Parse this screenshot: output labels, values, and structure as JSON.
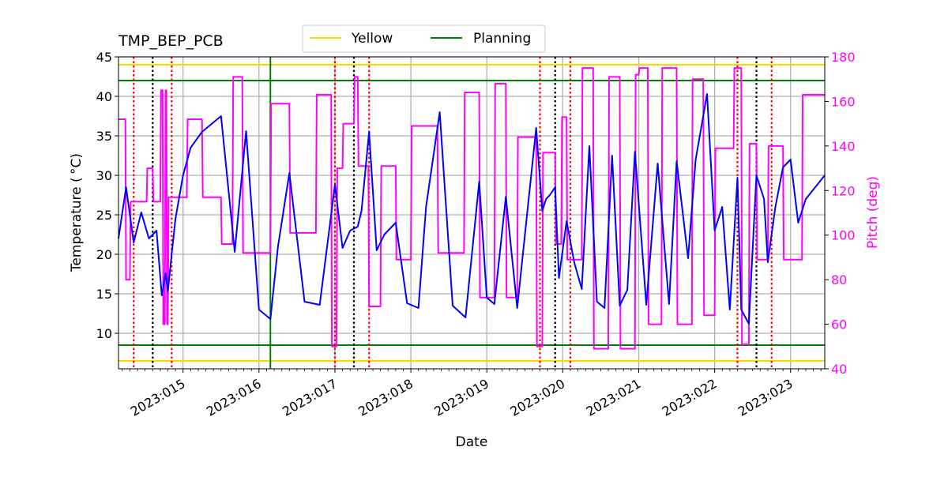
{
  "chart_data": {
    "type": "line",
    "title": "TMP_BEP_PCB",
    "xlabel": "Date",
    "ylabel": "Temperature ($^\\circ$C)",
    "ylabel_display": "Temperature ( °C)",
    "y2label": "Pitch (deg)",
    "xlim": [
      14.15,
      23.45
    ],
    "ylim": [
      5.5,
      45
    ],
    "y2lim": [
      40,
      180
    ],
    "x_ticks": [
      {
        "value": 15,
        "label": "2023:015"
      },
      {
        "value": 16,
        "label": "2023:016"
      },
      {
        "value": 17,
        "label": "2023:017"
      },
      {
        "value": 18,
        "label": "2023:018"
      },
      {
        "value": 19,
        "label": "2023:019"
      },
      {
        "value": 20,
        "label": "2023:020"
      },
      {
        "value": 21,
        "label": "2023:021"
      },
      {
        "value": 22,
        "label": "2023:022"
      },
      {
        "value": 23,
        "label": "2023:023"
      }
    ],
    "y_ticks": [
      10,
      15,
      20,
      25,
      30,
      35,
      40,
      45
    ],
    "y2_ticks": [
      40,
      60,
      80,
      100,
      120,
      140,
      160,
      180
    ],
    "grid": true,
    "legend_position": "top-center",
    "colors": {
      "temperature": "#0000ff",
      "pitch": "#ff00ff",
      "yellow": "#ffd700",
      "planning": "#008000",
      "red_marker": "#ff0000",
      "black_marker": "#000000",
      "grid": "#b0b0b0"
    },
    "legend": [
      {
        "name": "Yellow",
        "color": "#ffd700"
      },
      {
        "name": "Planning",
        "color": "#008000"
      }
    ],
    "hlines": [
      {
        "name": "Yellow",
        "values": [
          44,
          6.5
        ]
      },
      {
        "name": "Planning",
        "values": [
          42,
          8.5
        ]
      }
    ],
    "vline_planning": 16.15,
    "vlines_red": [
      14.35,
      14.85,
      17.0,
      17.45,
      19.7,
      20.1,
      22.3,
      22.75
    ],
    "vlines_black": [
      14.6,
      17.25,
      19.9,
      22.55
    ],
    "series": [
      {
        "name": "TMP_BEP_PCB",
        "axis": "left",
        "x": [
          14.15,
          14.25,
          14.35,
          14.45,
          14.55,
          14.6,
          14.65,
          14.72,
          14.77,
          14.8,
          14.85,
          14.9,
          15.0,
          15.1,
          15.25,
          15.5,
          15.68,
          15.83,
          16.0,
          16.15,
          16.25,
          16.4,
          16.6,
          16.8,
          17.0,
          17.1,
          17.2,
          17.3,
          17.35,
          17.45,
          17.55,
          17.65,
          17.8,
          17.95,
          18.1,
          18.2,
          18.38,
          18.55,
          18.72,
          18.9,
          19.0,
          19.1,
          19.25,
          19.4,
          19.65,
          19.73,
          19.78,
          19.83,
          19.9,
          19.95,
          20.05,
          20.15,
          20.25,
          20.35,
          20.45,
          20.55,
          20.65,
          20.75,
          20.85,
          20.95,
          21.1,
          21.25,
          21.4,
          21.5,
          21.65,
          21.75,
          21.9,
          22.0,
          22.1,
          22.2,
          22.3,
          22.35,
          22.45,
          22.55,
          22.65,
          22.7,
          22.8,
          22.9,
          23.0,
          23.1,
          23.2,
          23.45
        ],
        "y": [
          22,
          28.5,
          21.5,
          25.3,
          22,
          22.5,
          23,
          14.8,
          17.6,
          15.3,
          20,
          24.5,
          30,
          33.5,
          35.5,
          37.5,
          20.3,
          35.6,
          13,
          11.8,
          21,
          30.3,
          14,
          13.6,
          28.8,
          20.8,
          23,
          23.5,
          25.5,
          35.5,
          20.5,
          22.5,
          24,
          13.8,
          13.2,
          26,
          38,
          13.5,
          12,
          29.2,
          14.5,
          13.7,
          27.3,
          13.2,
          36,
          25.5,
          27,
          27.5,
          28.5,
          17,
          24.2,
          19,
          15.6,
          33.7,
          14,
          13.2,
          32.5,
          13.5,
          15.5,
          33,
          13.6,
          31.5,
          13.7,
          31.8,
          19.5,
          32,
          40.3,
          23,
          26,
          13,
          29.7,
          13,
          11.2,
          30,
          27,
          19,
          26,
          31,
          32,
          24,
          27,
          30
        ]
      },
      {
        "name": "Pitch",
        "axis": "right",
        "x": [
          14.15,
          14.24,
          14.25,
          14.3,
          14.31,
          14.35,
          14.36,
          14.52,
          14.53,
          14.6,
          14.61,
          14.7,
          14.71,
          14.73,
          14.74,
          14.76,
          14.77,
          14.78,
          14.79,
          14.8,
          14.81,
          14.83,
          14.84,
          15.05,
          15.06,
          15.25,
          15.26,
          15.5,
          15.51,
          15.65,
          15.66,
          15.78,
          15.79,
          16.15,
          16.16,
          16.4,
          16.41,
          16.75,
          16.76,
          16.95,
          16.96,
          17.02,
          17.03,
          17.1,
          17.11,
          17.25,
          17.26,
          17.3,
          17.31,
          17.44,
          17.45,
          17.6,
          17.61,
          17.8,
          17.81,
          18.0,
          18.01,
          18.35,
          18.36,
          18.7,
          18.71,
          18.9,
          18.91,
          19.1,
          19.11,
          19.25,
          19.26,
          19.4,
          19.41,
          19.65,
          19.66,
          19.73,
          19.74,
          19.9,
          19.91,
          19.98,
          19.99,
          20.05,
          20.06,
          20.25,
          20.26,
          20.4,
          20.41,
          20.6,
          20.61,
          20.75,
          20.76,
          20.95,
          20.96,
          21.0,
          21.01,
          21.12,
          21.13,
          21.3,
          21.31,
          21.5,
          21.51,
          21.7,
          21.71,
          21.85,
          21.86,
          22.0,
          22.01,
          22.25,
          22.26,
          22.35,
          22.36,
          22.45,
          22.46,
          22.55,
          22.56,
          22.7,
          22.71,
          22.9,
          22.91,
          23.15,
          23.16,
          23.45
        ],
        "y": [
          152,
          152,
          80,
          80,
          115,
          115,
          115,
          115,
          130,
          130,
          115,
          115,
          165,
          165,
          60,
          60,
          165,
          165,
          60,
          60,
          117,
          117,
          117,
          117,
          152,
          152,
          117,
          117,
          96,
          96,
          171,
          171,
          92,
          92,
          159,
          159,
          101,
          101,
          163,
          163,
          50,
          50,
          130,
          130,
          150,
          150,
          171,
          171,
          131,
          131,
          68,
          68,
          131,
          131,
          89,
          89,
          149,
          149,
          92,
          92,
          164,
          164,
          72,
          72,
          168,
          168,
          72,
          72,
          144,
          144,
          50,
          50,
          137,
          137,
          96,
          96,
          153,
          153,
          89,
          89,
          175,
          175,
          49,
          49,
          171,
          171,
          49,
          49,
          172,
          172,
          175,
          175,
          60,
          60,
          175,
          175,
          60,
          60,
          170,
          170,
          64,
          64,
          139,
          139,
          175,
          175,
          51,
          51,
          141,
          141,
          89,
          89,
          140,
          140,
          89,
          89,
          163,
          163
        ]
      }
    ]
  }
}
